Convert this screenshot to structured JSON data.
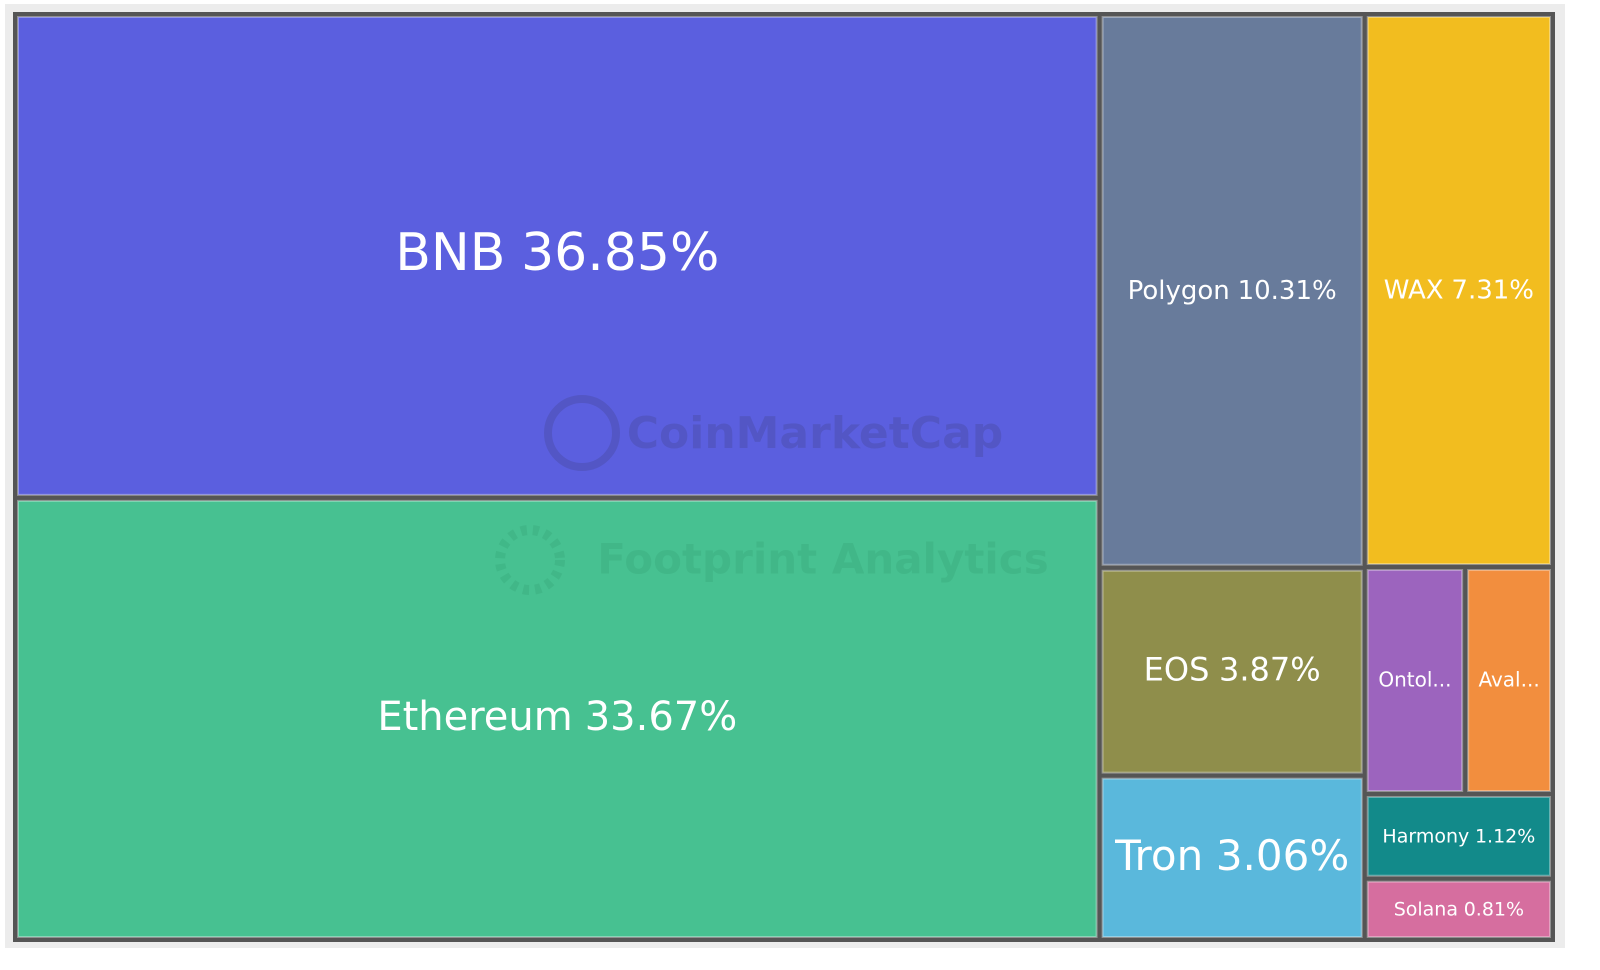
{
  "chart_data": {
    "type": "treemap",
    "categories": [
      "BNB",
      "Ethereum",
      "Polygon",
      "WAX",
      "EOS",
      "Tron",
      "Ontol...",
      "Aval...",
      "Harmony",
      "Solana"
    ],
    "values": [
      36.85,
      33.67,
      10.31,
      7.31,
      3.87,
      3.06,
      1.6,
      1.4,
      1.12,
      0.81
    ],
    "value_labels": [
      "36.85%",
      "33.67%",
      "10.31%",
      "7.31%",
      "3.87%",
      "3.06%",
      null,
      null,
      "1.12%",
      "0.81%"
    ],
    "colors": [
      "#5b5fdf",
      "#47c191",
      "#687b9b",
      "#f2bd1f",
      "#8f8e4b",
      "#5ab8dc",
      "#9c64be",
      "#f28e3e",
      "#128a8a",
      "#d66e9f"
    ],
    "watermarks": [
      "CoinMarketCap",
      "Footprint Analytics"
    ]
  }
}
